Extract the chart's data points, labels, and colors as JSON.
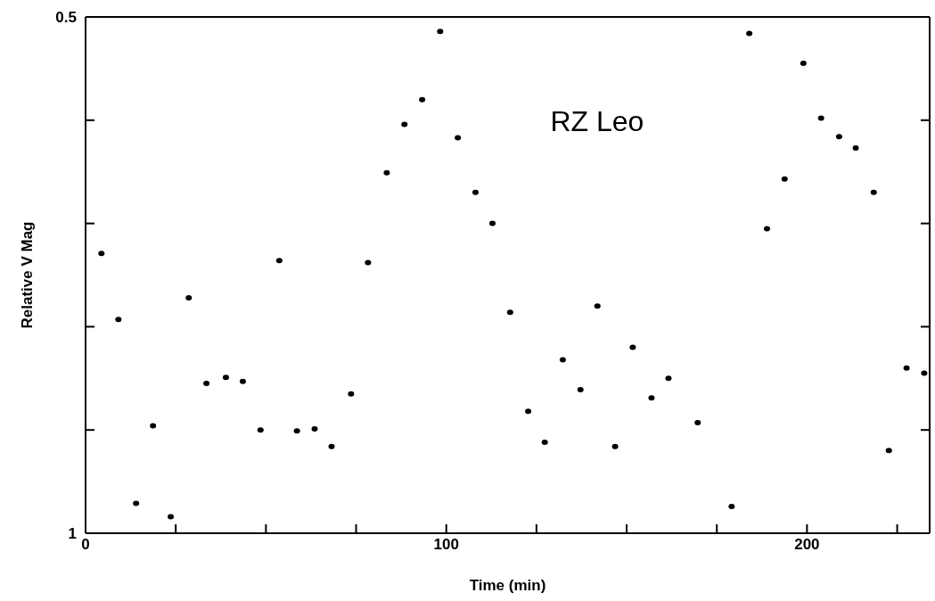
{
  "chart_data": {
    "type": "scatter",
    "title": "RZ Leo",
    "xlabel": "Time (min)",
    "ylabel": "Relative V Mag",
    "marker": "circle",
    "grid": false,
    "legend": false,
    "xlim": [
      0,
      234
    ],
    "xticks": [
      0,
      {
        "value": 25,
        "label": null
      },
      {
        "value": 50,
        "label": null
      },
      {
        "value": 75,
        "label": null
      },
      100,
      {
        "value": 125,
        "label": null
      },
      {
        "value": 150,
        "label": null
      },
      {
        "value": 175,
        "label": null
      },
      200,
      {
        "value": 225,
        "label": null
      }
    ],
    "ylim": [
      1,
      0.5
    ],
    "yticks": [
      0.5,
      {
        "value": 0.6,
        "label": null
      },
      {
        "value": 0.7,
        "label": null
      },
      {
        "value": 0.8,
        "label": null
      },
      {
        "value": 0.9,
        "label": null
      },
      1
    ],
    "series": [
      {
        "color": "#000000",
        "x": [
          4.4,
          9.1,
          14.0,
          18.7,
          23.6,
          28.6,
          33.5,
          38.9,
          43.6,
          48.5,
          53.7,
          58.6,
          63.5,
          68.2,
          73.6,
          78.3,
          83.5,
          88.4,
          93.3,
          98.3,
          103.2,
          108.1,
          112.8,
          117.7,
          122.7,
          127.3,
          132.3,
          137.2,
          141.9,
          146.8,
          151.7,
          156.9,
          161.6,
          169.7,
          179.1,
          184.0,
          188.9,
          193.8,
          199.0,
          203.9,
          208.9,
          213.5,
          218.5,
          222.7,
          227.6,
          232.5
        ],
        "values": [
          0.729,
          0.793,
          0.971,
          0.896,
          0.984,
          0.772,
          0.855,
          0.849,
          0.853,
          0.9,
          0.736,
          0.901,
          0.899,
          0.916,
          0.865,
          0.738,
          0.651,
          0.604,
          0.58,
          0.514,
          0.617,
          0.67,
          0.7,
          0.786,
          0.882,
          0.912,
          0.832,
          0.861,
          0.78,
          0.916,
          0.82,
          0.869,
          0.85,
          0.893,
          0.974,
          0.516,
          0.705,
          0.657,
          0.545,
          0.598,
          0.616,
          0.627,
          0.67,
          0.92,
          0.84,
          0.845
        ]
      }
    ]
  }
}
